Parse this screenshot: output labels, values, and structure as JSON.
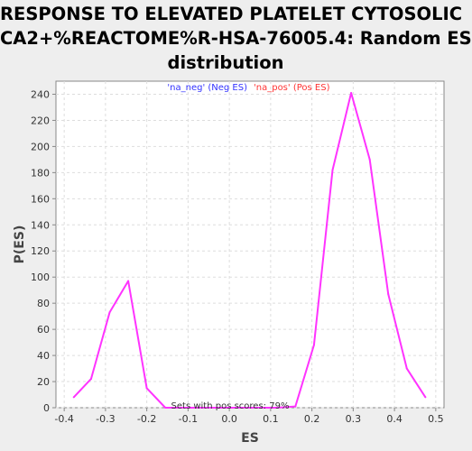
{
  "chart_data": {
    "type": "line",
    "title_lines": [
      "RESPONSE TO ELEVATED PLATELET CYTOSOLIC",
      "CA2+%REACTOME%R-HSA-76005.4: Random ES",
      "distribution"
    ],
    "xlabel": "ES",
    "ylabel": "P(ES)",
    "xlim": [
      -0.42,
      0.52
    ],
    "ylim": [
      0,
      250
    ],
    "x_ticks": [
      "-0.4",
      "-0.3",
      "-0.2",
      "-0.1",
      "0.0",
      "0.1",
      "0.2",
      "0.3",
      "0.4",
      "0.5"
    ],
    "y_ticks": [
      "0",
      "20",
      "40",
      "60",
      "80",
      "100",
      "120",
      "140",
      "160",
      "180",
      "200",
      "220",
      "240"
    ],
    "grid": true,
    "legend": {
      "position": "top",
      "entries": [
        {
          "label": "'na_neg' (Neg ES)",
          "color": "#3333ff"
        },
        {
          "label": "'na_pos' (Pos ES)",
          "color": "#ff3333"
        }
      ]
    },
    "annotation": "Sets with pos scores: 79%",
    "series": [
      {
        "color": "#ff33ff",
        "x": [
          -0.377,
          -0.335,
          -0.29,
          -0.245,
          -0.2,
          -0.155,
          -0.11,
          -0.065,
          -0.02,
          0.025,
          0.07,
          0.115,
          0.16,
          0.205,
          0.25,
          0.295,
          0.34,
          0.385,
          0.43,
          0.475
        ],
        "y": [
          8,
          22,
          73,
          97,
          15,
          0,
          0,
          0,
          0,
          0,
          0,
          0,
          1,
          48,
          182,
          241,
          190,
          87,
          30,
          8
        ]
      }
    ]
  }
}
